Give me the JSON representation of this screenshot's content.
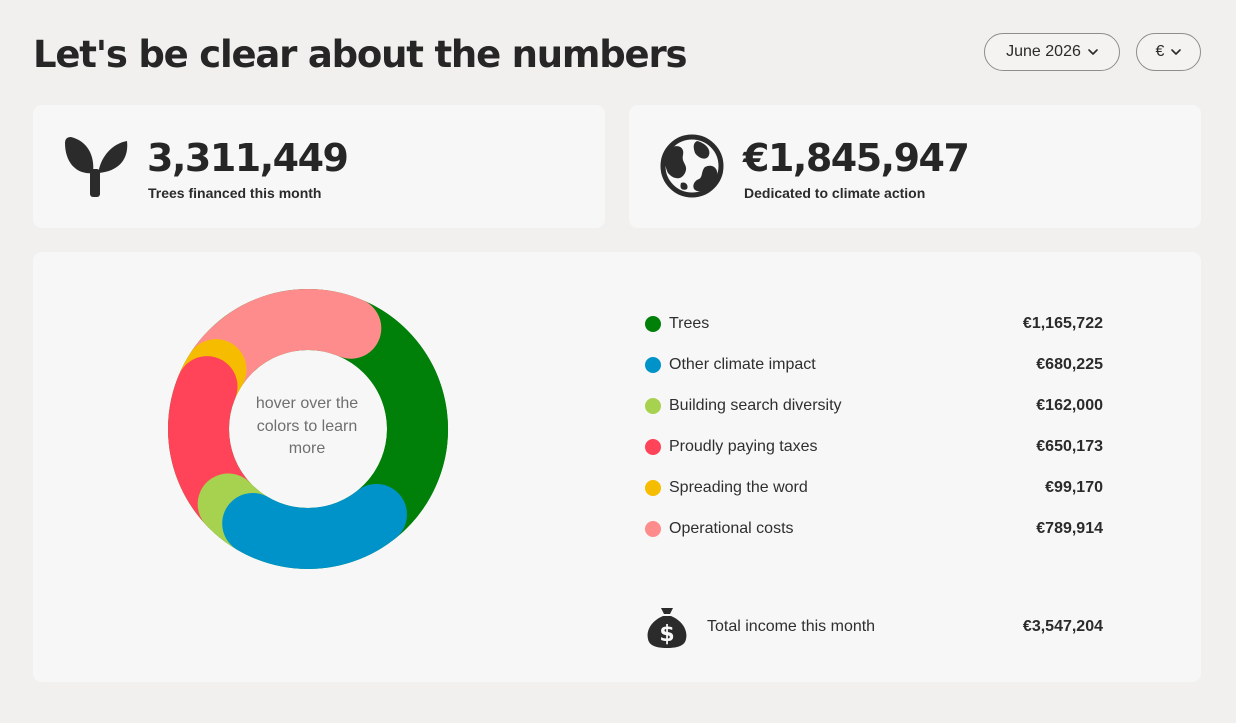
{
  "page_title": "Let's be clear about the numbers",
  "filters": {
    "month": "June 2026",
    "currency": "€"
  },
  "stats": {
    "trees": {
      "value": "3,311,449",
      "label": "Trees financed this month",
      "icon": "sprout-icon"
    },
    "climate": {
      "value": "€1,845,947",
      "label": "Dedicated to climate action",
      "icon": "globe-icon"
    }
  },
  "chart_data": {
    "type": "pie",
    "variant": "donut",
    "center_text": "hover over the colors to learn more",
    "categories": [
      "Trees",
      "Other climate impact",
      "Building search diversity",
      "Proudly paying taxes",
      "Spreading the word",
      "Operational costs"
    ],
    "values": [
      1165722,
      680225,
      162000,
      650173,
      99170,
      789914
    ],
    "value_labels": [
      "€1,165,722",
      "€680,225",
      "€162,000",
      "€650,173",
      "€99,170",
      "€789,914"
    ],
    "colors": [
      "#008009",
      "#0093c9",
      "#a6d24f",
      "#ff4459",
      "#f6bd00",
      "#ff8c8c"
    ],
    "legend_position": "right"
  },
  "total": {
    "label": "Total income this month",
    "value": "€3,547,204",
    "icon": "money-bag-icon"
  }
}
